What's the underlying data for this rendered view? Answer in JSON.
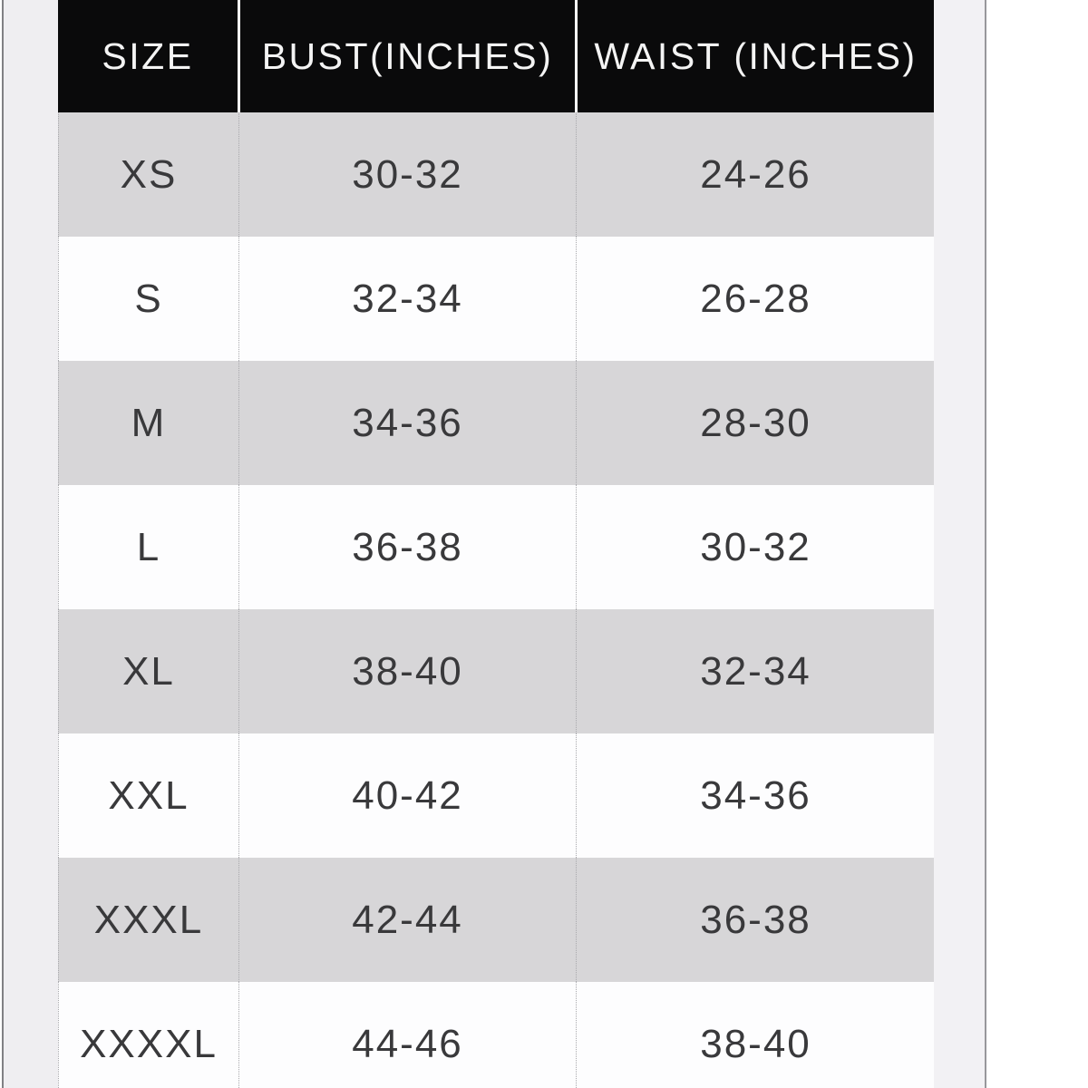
{
  "table": {
    "name": "size-chart",
    "columns": [
      {
        "key": "size",
        "label": "SIZE"
      },
      {
        "key": "bust",
        "label": "BUST(INCHES)"
      },
      {
        "key": "waist",
        "label": "WAIST (INCHES)"
      }
    ],
    "rows": [
      {
        "size": "XS",
        "bust": "30-32",
        "waist": "24-26"
      },
      {
        "size": "S",
        "bust": "32-34",
        "waist": "26-28"
      },
      {
        "size": "M",
        "bust": "34-36",
        "waist": "28-30"
      },
      {
        "size": "L",
        "bust": "36-38",
        "waist": "30-32"
      },
      {
        "size": "XL",
        "bust": "38-40",
        "waist": "32-34"
      },
      {
        "size": "XXL",
        "bust": "40-42",
        "waist": "34-36"
      },
      {
        "size": "XXXL",
        "bust": "42-44",
        "waist": "36-38"
      },
      {
        "size": "XXXXL",
        "bust": "44-46",
        "waist": "38-40"
      }
    ],
    "colors": {
      "header_bg": "#0a0a0b",
      "header_text": "#f4f4f4",
      "row_stripe_bg": "#d7d6d8",
      "row_plain_bg": "#fdfdfe",
      "cell_text": "#39393b",
      "page_margin_bg": "#efeef1",
      "edge_line": "#88888c",
      "column_separator": "#a9a9ad"
    }
  }
}
